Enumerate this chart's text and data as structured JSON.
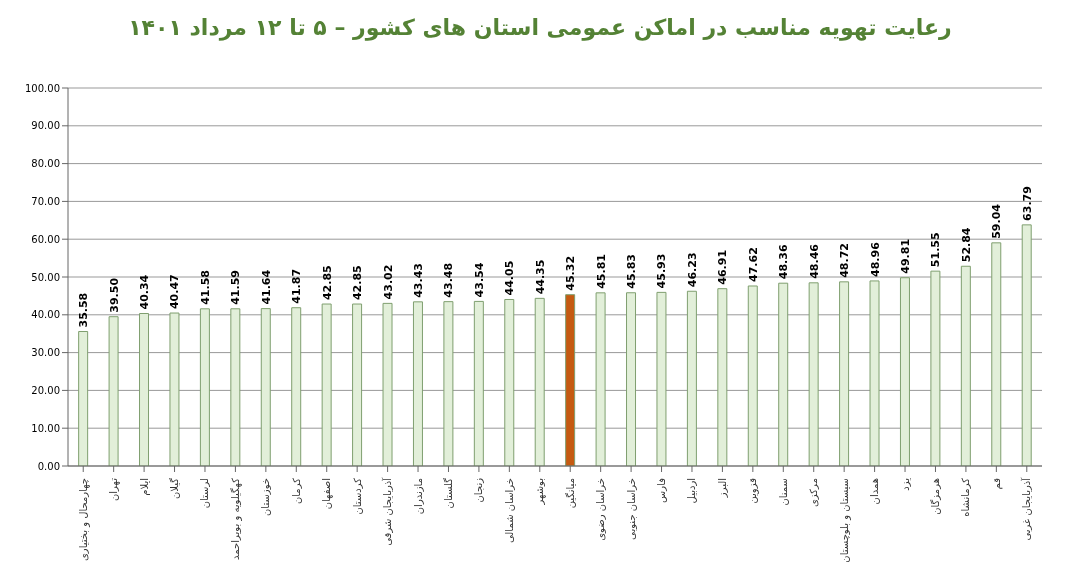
{
  "chart_data": {
    "type": "bar",
    "title": "رعایت تهویه مناسب در اماکن عمومی استان های کشور  – ۵ تا ۱۲ مرداد ۱۴۰۱",
    "categories": [
      "چهارمحال و بختیاری",
      "تهران",
      "ایلام",
      "گیلان",
      "لرستان",
      "کهگیلویه و بویراحمد",
      "خوزستان",
      "کرمان",
      "اصفهان",
      "کردستان",
      "آذربایجان شرقی",
      "مازندران",
      "گلستان",
      "زنجان",
      "خراسان شمالی",
      "بوشهر",
      "میانگین",
      "خراسان رضوی",
      "خراسان جنوبی",
      "فارس",
      "اردبیل",
      "البرز",
      "قزوین",
      "سمنان",
      "مرکزی",
      "سیستان و بلوچستان",
      "همدان",
      "یزد",
      "هرمزگان",
      "کرمانشاه",
      "قم",
      "آذربایجان غربی"
    ],
    "values": [
      35.58,
      39.5,
      40.34,
      40.47,
      41.58,
      41.59,
      41.64,
      41.87,
      42.85,
      42.85,
      43.02,
      43.43,
      43.48,
      43.54,
      44.05,
      44.35,
      45.32,
      45.81,
      45.83,
      45.93,
      46.23,
      46.91,
      47.62,
      48.36,
      48.46,
      48.72,
      48.96,
      49.81,
      51.55,
      52.84,
      59.04,
      63.79
    ],
    "value_labels": [
      "35.58",
      "39.50",
      "40.34",
      "40.47",
      "41.58",
      "41.59",
      "41.64",
      "41.87",
      "42.85",
      "42.85",
      "43.02",
      "43.43",
      "43.48",
      "43.54",
      "44.05",
      "44.35",
      "45.32",
      "45.81",
      "45.83",
      "45.93",
      "46.23",
      "46.91",
      "47.62",
      "48.36",
      "48.46",
      "48.72",
      "48.96",
      "49.81",
      "51.55",
      "52.84",
      "59.04",
      "63.79"
    ],
    "colors": [
      "#e2efd9",
      "#e2efd9",
      "#e2efd9",
      "#e2efd9",
      "#e2efd9",
      "#e2efd9",
      "#e2efd9",
      "#e2efd9",
      "#e2efd9",
      "#e2efd9",
      "#e2efd9",
      "#e2efd9",
      "#e2efd9",
      "#e2efd9",
      "#e2efd9",
      "#e2efd9",
      "#c55a11",
      "#e2efd9",
      "#e2efd9",
      "#e2efd9",
      "#e2efd9",
      "#e2efd9",
      "#e2efd9",
      "#e2efd9",
      "#e2efd9",
      "#e2efd9",
      "#e2efd9",
      "#e2efd9",
      "#e2efd9",
      "#e2efd9",
      "#e2efd9",
      "#e2efd9"
    ],
    "ylim": [
      0,
      100
    ],
    "yticks": [
      {
        "value": 0,
        "label": "0.00"
      },
      {
        "value": 10,
        "label": "10.00"
      },
      {
        "value": 20,
        "label": "20.00"
      },
      {
        "value": 30,
        "label": "30.00"
      },
      {
        "value": 40,
        "label": "40.00"
      },
      {
        "value": 50,
        "label": "50.00"
      },
      {
        "value": 60,
        "label": "60.00"
      },
      {
        "value": 70,
        "label": "70.00"
      },
      {
        "value": 80,
        "label": "80.00"
      },
      {
        "value": 90,
        "label": "90.00"
      },
      {
        "value": 100,
        "label": "100.00"
      }
    ],
    "grid": "y",
    "legend": false
  }
}
